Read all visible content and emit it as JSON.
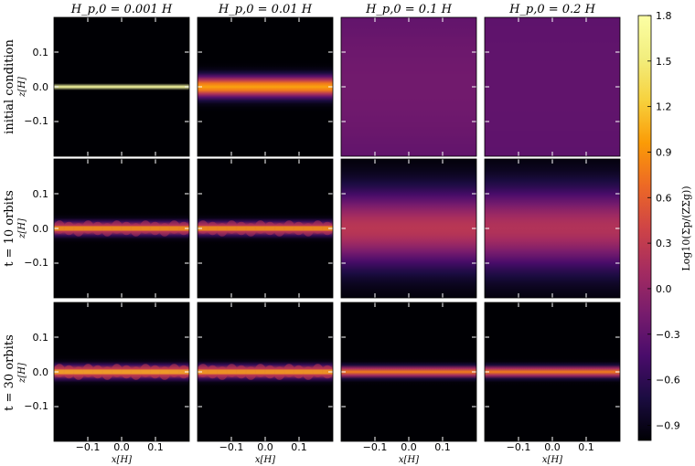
{
  "chart_data": {
    "type": "heatmap",
    "column_titles": [
      "H_p,0 = 0.001 H",
      "H_p,0 = 0.01 H",
      "H_p,0 = 0.1 H",
      "H_p,0 = 0.2 H"
    ],
    "row_titles": [
      "initial condition",
      "t = 10 orbits",
      "t = 30 orbits"
    ],
    "ylabel": "z[H]",
    "xlabel": "x[H]",
    "xlim": [
      -0.2,
      0.2
    ],
    "ylim": [
      -0.2,
      0.2
    ],
    "x_ticks": [
      "−0.1",
      "0.0",
      "0.1"
    ],
    "x_tick_values": [
      -0.1,
      0.0,
      0.1
    ],
    "y_ticks": [
      "0.1",
      "0.0",
      "−0.1"
    ],
    "y_tick_values": [
      0.1,
      0.0,
      -0.1
    ],
    "colorbar": {
      "label": "Log10(Σp/(ZΣg))",
      "range": [
        -1.0,
        1.8
      ],
      "ticks": [
        "1.8",
        "1.5",
        "1.2",
        "0.9",
        "0.6",
        "0.3",
        "0.0",
        "−0.3",
        "−0.6",
        "−0.9"
      ],
      "tick_values": [
        1.8,
        1.5,
        1.2,
        0.9,
        0.6,
        0.3,
        0.0,
        -0.3,
        -0.6,
        -0.9
      ],
      "colormap": "inferno"
    },
    "panels": [
      [
        {
          "layer_half_width": 0.002,
          "peak": 1.8,
          "background": -1.0,
          "wavy": false
        },
        {
          "layer_half_width": 0.02,
          "peak": 1.0,
          "background": -1.0,
          "wavy": false
        },
        {
          "layer_half_width": 0.2,
          "peak": -0.2,
          "background": -0.45,
          "wavy": false
        },
        {
          "layer_half_width": 0.2,
          "peak": -0.3,
          "background": -0.35,
          "wavy": false
        }
      ],
      [
        {
          "layer_half_width": 0.012,
          "peak": 0.7,
          "background": -1.0,
          "wavy": true
        },
        {
          "layer_half_width": 0.012,
          "peak": 0.7,
          "background": -1.0,
          "wavy": true
        },
        {
          "layer_half_width": 0.075,
          "peak": 0.25,
          "background": -1.0,
          "wavy": false
        },
        {
          "layer_half_width": 0.08,
          "peak": 0.2,
          "background": -1.0,
          "wavy": false
        }
      ],
      [
        {
          "layer_half_width": 0.012,
          "peak": 0.8,
          "background": -1.0,
          "wavy": true
        },
        {
          "layer_half_width": 0.012,
          "peak": 0.75,
          "background": -1.0,
          "wavy": true
        },
        {
          "layer_half_width": 0.01,
          "peak": 0.8,
          "background": -1.0,
          "wavy": false
        },
        {
          "layer_half_width": 0.01,
          "peak": 0.8,
          "background": -1.0,
          "wavy": false
        }
      ]
    ]
  }
}
